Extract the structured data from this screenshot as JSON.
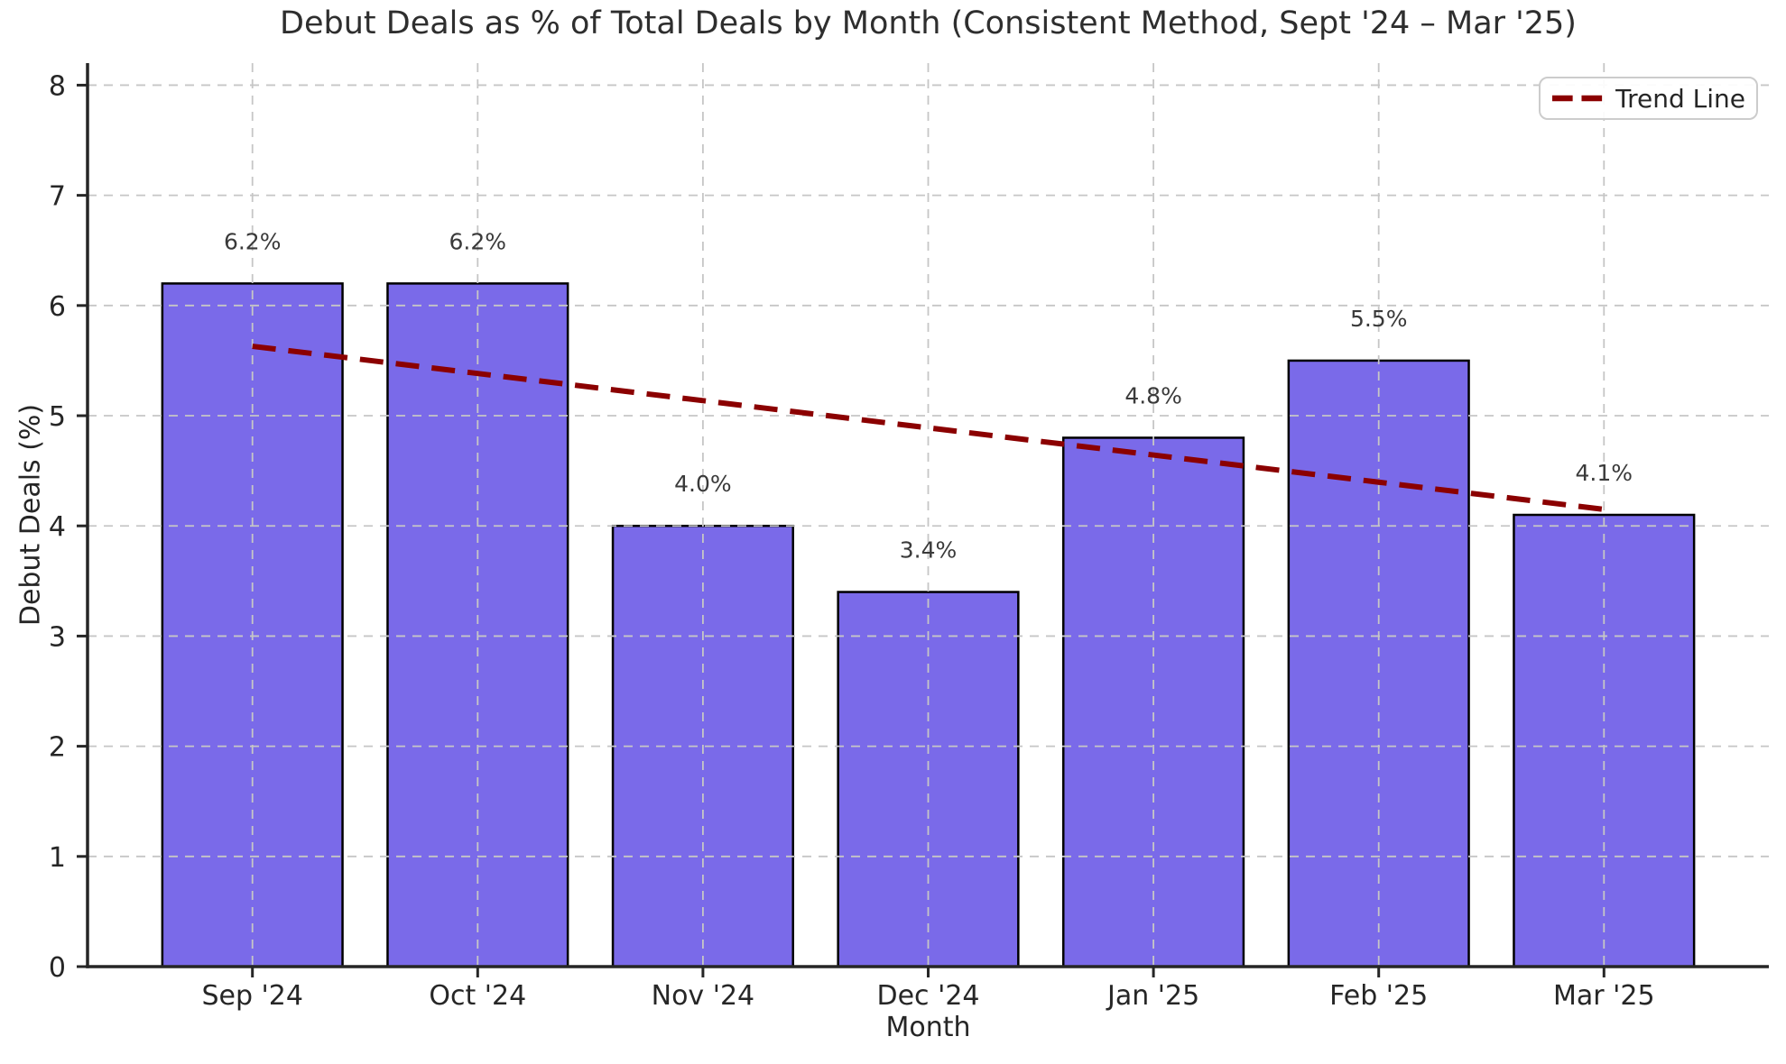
{
  "chart_data": {
    "type": "bar",
    "title": "Debut Deals as % of Total Deals by Month (Consistent Method, Sept '24 – Mar '25)",
    "xlabel": "Month",
    "ylabel": "Debut Deals (%)",
    "categories": [
      "Sep '24",
      "Oct '24",
      "Nov '24",
      "Dec '24",
      "Jan '25",
      "Feb '25",
      "Mar '25"
    ],
    "values": [
      6.2,
      6.2,
      4.0,
      3.4,
      4.8,
      5.5,
      4.1
    ],
    "bar_labels": [
      "6.2%",
      "6.2%",
      "4.0%",
      "3.4%",
      "4.8%",
      "5.5%",
      "4.1%"
    ],
    "ylim": [
      0,
      8.2
    ],
    "yticks": [
      0,
      1,
      2,
      3,
      4,
      5,
      6,
      7,
      8
    ],
    "ytick_labels": [
      "0",
      "1",
      "2",
      "3",
      "4",
      "5",
      "6",
      "7",
      "8"
    ],
    "grid": true,
    "legend": {
      "position": "upper right",
      "entries": [
        {
          "label": "Trend Line",
          "line_style": "dashed",
          "color": "#8b0000"
        }
      ]
    },
    "trend_line": {
      "start_month": "Sep '24",
      "end_month": "Mar '25",
      "start_value": 5.63,
      "end_value": 4.15,
      "color": "#8b0000",
      "style": "dashed"
    },
    "colors": {
      "bar_fill": "#7a6ae9",
      "bar_edge": "#000000",
      "gridline": "#c6c6c6",
      "axis": "#262626",
      "text": "#262626",
      "bar_label_text": "#3a3a3a"
    }
  }
}
